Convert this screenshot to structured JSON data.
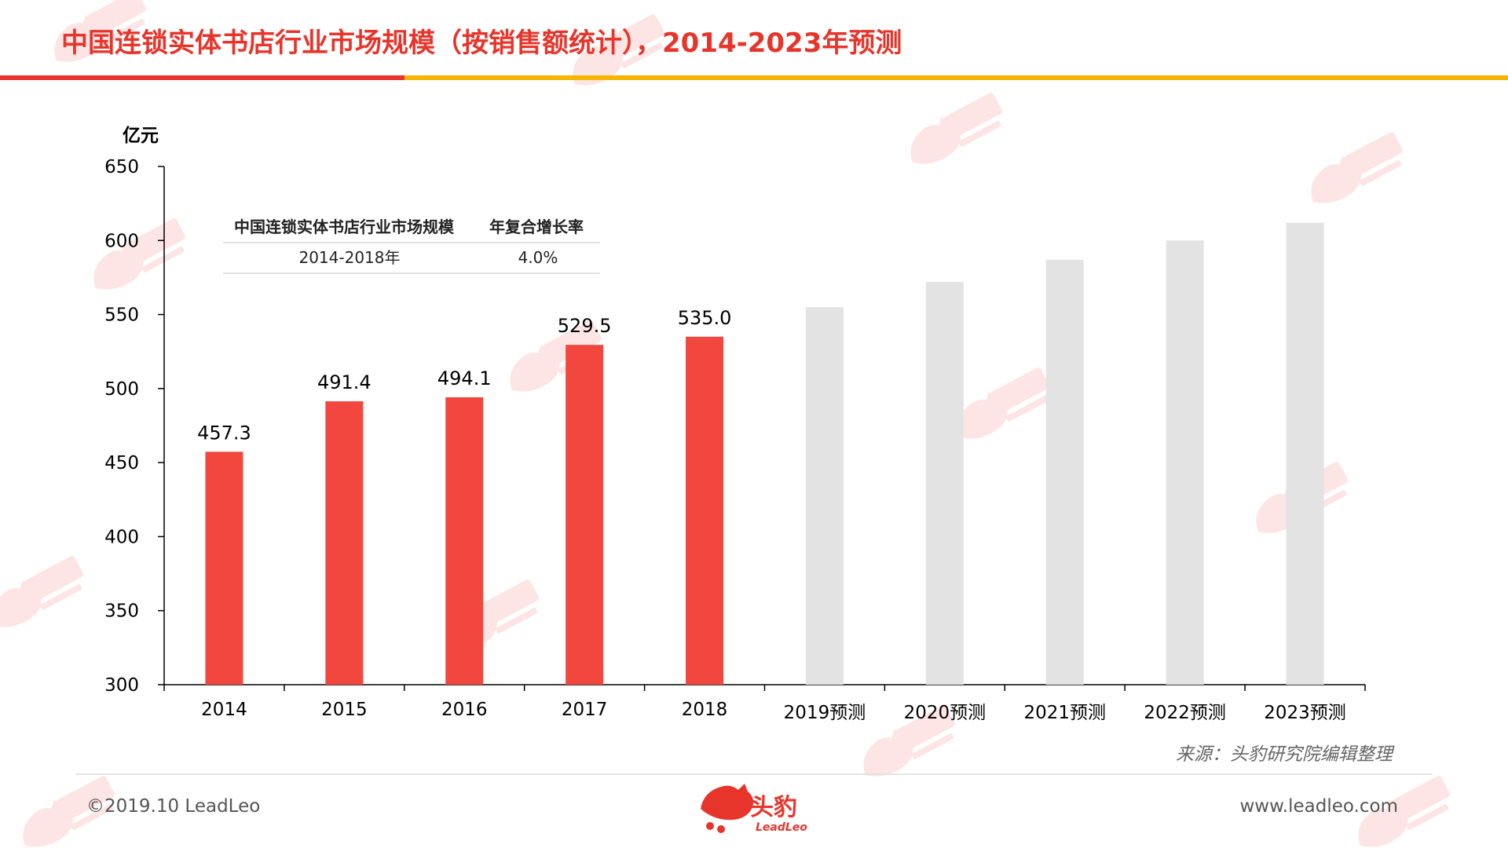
{
  "title": "中国连锁实体书店行业市场规模（按销售额统计），2014-2023年预测",
  "unit": "亿元",
  "colors": {
    "actual": "#f2473f",
    "forecast": "#e3e3e3",
    "accent_red": "#e8352b",
    "accent_yellow": "#f7b500"
  },
  "inset_table": {
    "headers": [
      "中国连锁实体书店行业市场规模",
      "年复合增长率"
    ],
    "row": [
      "2014-2018年",
      "4.0%"
    ]
  },
  "source": "来源：头豹研究院编辑整理",
  "footer": {
    "copyright": "©2019.10 LeadLeo",
    "website": "www.leadleo.com",
    "logo_cn": "头豹",
    "logo_en": "LeadLeo"
  },
  "chart_data": {
    "type": "bar",
    "categories": [
      "2014",
      "2015",
      "2016",
      "2017",
      "2018",
      "2019预测",
      "2020预测",
      "2021预测",
      "2022预测",
      "2023预测"
    ],
    "values": [
      457.3,
      491.4,
      494.1,
      529.5,
      535.0,
      555,
      572,
      587,
      600,
      612
    ],
    "value_labels": [
      "457.3",
      "491.4",
      "494.1",
      "529.5",
      "535.0",
      "",
      "",
      "",
      "",
      ""
    ],
    "forecast": [
      false,
      false,
      false,
      false,
      false,
      true,
      true,
      true,
      true,
      true
    ],
    "ylim": [
      300,
      650
    ],
    "yticks": [
      300,
      350,
      400,
      450,
      500,
      550,
      600,
      650
    ],
    "ylabel": "亿元",
    "xlabel": "",
    "grid": false
  }
}
